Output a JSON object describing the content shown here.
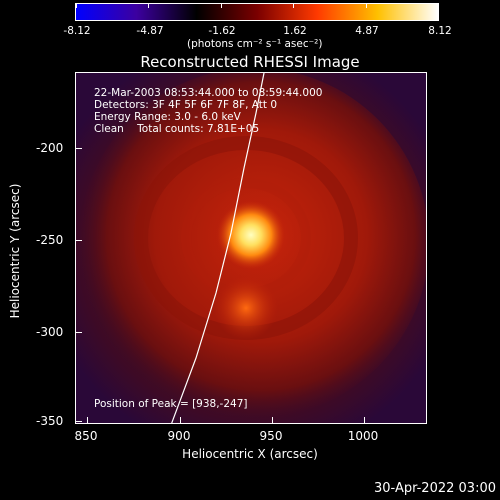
{
  "colorbar": {
    "ticks": [
      "-8.12",
      "-4.87",
      "-1.62",
      "1.62",
      "4.87",
      "8.12"
    ],
    "unit_label": "(photons cm⁻² s⁻¹ asec⁻²)",
    "stops": [
      "#0000ff",
      "#3c00a0",
      "#000000",
      "#7a0000",
      "#ff3a00",
      "#ffc000",
      "#ffffff"
    ]
  },
  "plot": {
    "title": "Reconstructed RHESSI Image",
    "info": [
      "22-Mar-2003 08:53:44.000 to 08:59:44.000",
      "Detectors: 3F 4F 5F 6F 7F 8F, Att 0",
      "Energy Range: 3.0 - 6.0 keV",
      "Clean    Total counts: 7.81E+05"
    ],
    "peak_text": "Position of Peak = [938,-247]",
    "xlabel": "Heliocentric X (arcsec)",
    "ylabel": "Heliocentric Y (arcsec)",
    "x_ticks": [
      "850",
      "900",
      "950",
      "1000"
    ],
    "y_ticks": [
      "-200",
      "-250",
      "-300",
      "-350"
    ]
  },
  "footer": {
    "date": "30-Apr-2022 03:00"
  }
}
